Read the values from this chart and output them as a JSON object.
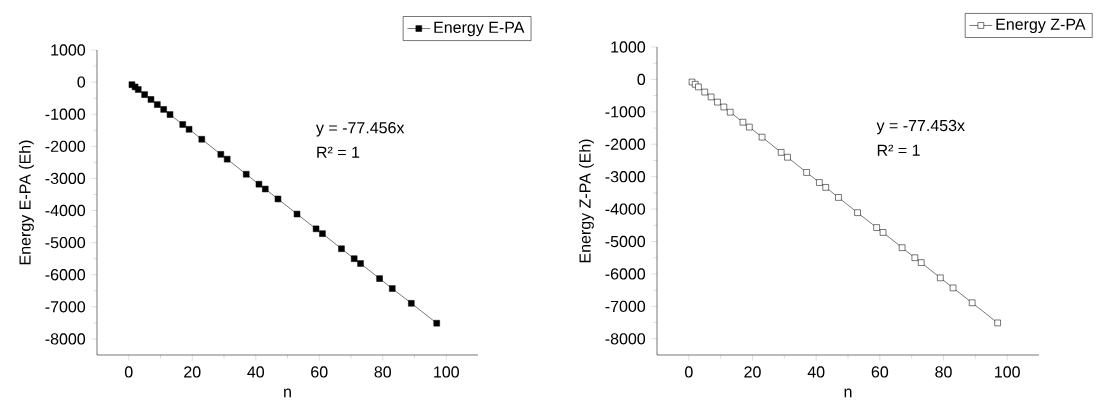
{
  "chart_data": [
    {
      "type": "line",
      "xlabel": "n",
      "ylabel": "Energy E-PA (Eh)",
      "annotations": [
        "y = -77.456x",
        "R² = 1"
      ],
      "x": [
        1,
        2,
        3,
        5,
        7,
        9,
        11,
        13,
        17,
        19,
        23,
        29,
        31,
        37,
        41,
        43,
        47,
        53,
        59,
        61,
        67,
        71,
        73,
        79,
        83,
        89,
        97
      ],
      "series": [
        {
          "name": "Energy E-PA",
          "color": "#000000",
          "values": [
            -80,
            -150,
            -230,
            -390,
            -540,
            -700,
            -850,
            -1010,
            -1320,
            -1470,
            -1780,
            -2250,
            -2400,
            -2870,
            -3180,
            -3330,
            -3640,
            -4110,
            -4570,
            -4720,
            -5190,
            -5500,
            -5650,
            -6120,
            -6430,
            -6890,
            -7510
          ]
        }
      ],
      "xlim": [
        -10,
        110
      ],
      "xticks": [
        0,
        20,
        40,
        60,
        80,
        100
      ],
      "ylim": [
        -8500,
        1000
      ],
      "yticks": [
        -8000,
        -7000,
        -6000,
        -5000,
        -4000,
        -3000,
        -2000,
        -1000,
        0,
        1000
      ],
      "grid": false,
      "legend": "top right",
      "marker": "square",
      "line_style": "solid"
    },
    {
      "type": "line",
      "xlabel": "n",
      "ylabel": "Energy Z-PA (Eh)",
      "annotations": [
        "y = -77.453x",
        "R² = 1"
      ],
      "x": [
        1,
        2,
        3,
        5,
        7,
        9,
        11,
        13,
        17,
        19,
        23,
        29,
        31,
        37,
        41,
        43,
        47,
        53,
        59,
        61,
        67,
        71,
        73,
        79,
        83,
        89,
        97
      ],
      "series": [
        {
          "name": "Energy Z-PA",
          "color": "#000000",
          "values": [
            -80,
            -150,
            -230,
            -390,
            -540,
            -700,
            -850,
            -1010,
            -1320,
            -1470,
            -1780,
            -2250,
            -2400,
            -2870,
            -3180,
            -3330,
            -3640,
            -4110,
            -4570,
            -4720,
            -5190,
            -5500,
            -5650,
            -6120,
            -6430,
            -6890,
            -7510
          ]
        }
      ],
      "xlim": [
        -10,
        110
      ],
      "xticks": [
        0,
        20,
        40,
        60,
        80,
        100
      ],
      "ylim": [
        -8500,
        1000
      ],
      "yticks": [
        -8000,
        -7000,
        -6000,
        -5000,
        -4000,
        -3000,
        -2000,
        -1000,
        0,
        1000
      ],
      "grid": false,
      "legend": "top right",
      "marker": "square",
      "line_style": "solid"
    }
  ]
}
